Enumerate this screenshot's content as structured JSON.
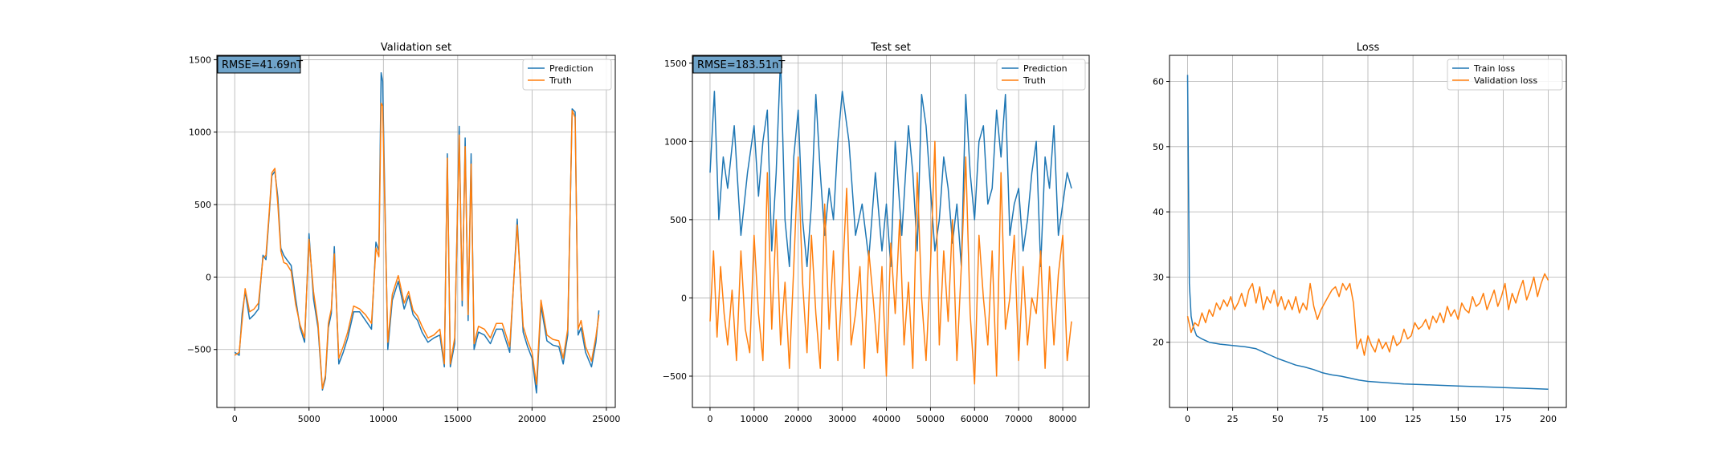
{
  "colors": {
    "blue": "#1f77b4",
    "orange": "#ff7f0e",
    "rmse_box": "#6fa3c9"
  },
  "chart_data": [
    {
      "type": "line",
      "title": "Validation set",
      "annotation": "RMSE=41.69nT",
      "xlabel": "",
      "ylabel": "",
      "xlim": [
        -1200,
        25600
      ],
      "ylim": [
        -900,
        1530
      ],
      "xticks": [
        0,
        5000,
        10000,
        15000,
        20000,
        25000
      ],
      "xtick_labels": [
        "0",
        "5000",
        "10000",
        "15000",
        "20000",
        "25000"
      ],
      "yticks": [
        -500,
        0,
        500,
        1000,
        1500
      ],
      "ytick_labels": [
        "−500",
        "0",
        "500",
        "1000",
        "1500"
      ],
      "grid": true,
      "legend_position": "top-right",
      "series": [
        {
          "name": "Prediction",
          "x": [
            0,
            300,
            500,
            700,
            1000,
            1300,
            1600,
            1900,
            2100,
            2300,
            2500,
            2700,
            2900,
            3100,
            3300,
            3500,
            3800,
            4100,
            4400,
            4700,
            5000,
            5300,
            5600,
            5900,
            6100,
            6300,
            6500,
            6700,
            7000,
            7300,
            7600,
            8000,
            8400,
            8800,
            9200,
            9500,
            9700,
            9850,
            9950,
            10100,
            10300,
            10600,
            11000,
            11400,
            11700,
            12000,
            12300,
            12600,
            13000,
            13400,
            13800,
            14100,
            14300,
            14500,
            14800,
            15100,
            15300,
            15500,
            15700,
            15900,
            16100,
            16400,
            16800,
            17200,
            17600,
            18000,
            18500,
            19000,
            19400,
            19700,
            20000,
            20300,
            20600,
            21000,
            21400,
            21800,
            22100,
            22400,
            22700,
            22900,
            23100,
            23300,
            23600,
            24000,
            24300,
            24500
          ],
          "y": [
            -520,
            -540,
            -250,
            -100,
            -290,
            -260,
            -220,
            150,
            120,
            400,
            700,
            730,
            550,
            200,
            150,
            120,
            80,
            -150,
            -350,
            -450,
            300,
            -150,
            -350,
            -780,
            -700,
            -350,
            -250,
            210,
            -600,
            -520,
            -420,
            -240,
            -240,
            -300,
            -360,
            240,
            180,
            1410,
            1350,
            550,
            -500,
            -160,
            -30,
            -220,
            -130,
            -260,
            -300,
            -380,
            -450,
            -420,
            -400,
            -620,
            850,
            -620,
            -460,
            1040,
            -200,
            960,
            -300,
            850,
            -500,
            -380,
            -400,
            -460,
            -360,
            -360,
            -520,
            400,
            -380,
            -480,
            -560,
            -800,
            -200,
            -440,
            -470,
            -480,
            -600,
            -400,
            1160,
            1140,
            -400,
            -350,
            -520,
            -620,
            -450,
            -230
          ]
        },
        {
          "name": "Truth",
          "x": [
            0,
            300,
            500,
            700,
            1000,
            1300,
            1600,
            1900,
            2100,
            2300,
            2500,
            2700,
            2900,
            3100,
            3300,
            3500,
            3800,
            4100,
            4400,
            4700,
            5000,
            5300,
            5600,
            5900,
            6100,
            6300,
            6500,
            6700,
            7000,
            7300,
            7600,
            8000,
            8400,
            8800,
            9200,
            9500,
            9700,
            9850,
            9950,
            10100,
            10300,
            10600,
            11000,
            11400,
            11700,
            12000,
            12300,
            12600,
            13000,
            13400,
            13800,
            14100,
            14300,
            14500,
            14800,
            15100,
            15300,
            15500,
            15700,
            15900,
            16100,
            16400,
            16800,
            17200,
            17600,
            18000,
            18500,
            19000,
            19400,
            19700,
            20000,
            20300,
            20600,
            21000,
            21400,
            21800,
            22100,
            22400,
            22700,
            22900,
            23100,
            23300,
            23600,
            24000,
            24300,
            24500
          ],
          "y": [
            -540,
            -520,
            -300,
            -80,
            -240,
            -220,
            -180,
            130,
            150,
            420,
            720,
            750,
            500,
            180,
            100,
            90,
            40,
            -190,
            -330,
            -420,
            260,
            -100,
            -320,
            -770,
            -680,
            -320,
            -220,
            160,
            -560,
            -480,
            -380,
            -200,
            -220,
            -260,
            -320,
            200,
            140,
            1200,
            1180,
            480,
            -450,
            -120,
            10,
            -180,
            -100,
            -230,
            -270,
            -340,
            -420,
            -400,
            -360,
            -600,
            820,
            -600,
            -420,
            980,
            -160,
            900,
            -260,
            780,
            -460,
            -340,
            -360,
            -420,
            -320,
            -320,
            -480,
            360,
            -340,
            -440,
            -520,
            -740,
            -160,
            -400,
            -430,
            -440,
            -560,
            -360,
            1150,
            1100,
            -360,
            -300,
            -480,
            -580,
            -410,
            -260
          ]
        }
      ]
    },
    {
      "type": "line",
      "title": "Test set",
      "annotation": "RMSE=183.51nT",
      "xlabel": "",
      "ylabel": "",
      "xlim": [
        -4000,
        86000
      ],
      "ylim": [
        -700,
        1550
      ],
      "xticks": [
        0,
        10000,
        20000,
        30000,
        40000,
        50000,
        60000,
        70000,
        80000
      ],
      "xtick_labels": [
        "0",
        "10000",
        "20000",
        "30000",
        "40000",
        "50000",
        "60000",
        "70000",
        "80000"
      ],
      "yticks": [
        -500,
        0,
        500,
        1000,
        1500
      ],
      "ytick_labels": [
        "−500",
        "0",
        "500",
        "1000",
        "1500"
      ],
      "grid": true,
      "legend_position": "top-right",
      "series": [
        {
          "name": "Prediction",
          "x": [
            0,
            1000,
            2000,
            3000,
            4000,
            5500,
            7000,
            8500,
            10000,
            11000,
            12000,
            13000,
            14000,
            15000,
            16000,
            17000,
            18000,
            19000,
            20000,
            21000,
            22000,
            23000,
            24000,
            25000,
            26000,
            27000,
            28000,
            29000,
            30000,
            31500,
            33000,
            34500,
            36000,
            37500,
            39000,
            40000,
            41000,
            42000,
            43500,
            45000,
            46000,
            47000,
            48000,
            49000,
            50000,
            51000,
            52000,
            53000,
            54000,
            55000,
            56000,
            57000,
            58000,
            59000,
            60000,
            61000,
            62000,
            63000,
            64000,
            65000,
            66000,
            67000,
            68000,
            69000,
            70000,
            71000,
            72000,
            73000,
            74000,
            75000,
            76000,
            77000,
            78000,
            79000,
            80000,
            81000,
            82000
          ],
          "y": [
            800,
            1320,
            500,
            900,
            700,
            1100,
            400,
            800,
            1100,
            650,
            1000,
            1200,
            300,
            800,
            1540,
            500,
            200,
            900,
            1200,
            500,
            200,
            600,
            1300,
            800,
            400,
            700,
            500,
            1000,
            1320,
            1000,
            400,
            600,
            250,
            800,
            300,
            600,
            200,
            1000,
            400,
            1100,
            800,
            300,
            1300,
            1100,
            700,
            300,
            500,
            900,
            700,
            350,
            600,
            200,
            1300,
            800,
            500,
            1000,
            1100,
            600,
            700,
            1200,
            900,
            1300,
            400,
            600,
            700,
            300,
            500,
            800,
            1000,
            200,
            900,
            700,
            1100,
            400,
            600,
            800,
            700
          ]
        },
        {
          "name": "Truth",
          "x": [
            0,
            800,
            1600,
            2400,
            3200,
            4000,
            5000,
            6000,
            7000,
            8000,
            9000,
            10000,
            11000,
            12000,
            13000,
            14000,
            15000,
            16000,
            17000,
            18000,
            19000,
            20000,
            21000,
            22000,
            23000,
            24000,
            25000,
            26000,
            27000,
            28000,
            29000,
            30000,
            31000,
            32000,
            33000,
            34000,
            35000,
            36000,
            37000,
            38000,
            39000,
            40000,
            41000,
            42000,
            43000,
            44000,
            45000,
            46000,
            47000,
            48000,
            49000,
            50000,
            51000,
            52000,
            53000,
            54000,
            55000,
            56000,
            57000,
            58000,
            59000,
            60000,
            61000,
            62000,
            63000,
            64000,
            65000,
            66000,
            67000,
            68000,
            69000,
            70000,
            71000,
            72000,
            73000,
            74000,
            75000,
            76000,
            77000,
            78000,
            79000,
            80000,
            81000,
            82000
          ],
          "y": [
            -150,
            300,
            -250,
            200,
            -100,
            -300,
            50,
            -400,
            300,
            -200,
            -350,
            400,
            -100,
            -400,
            800,
            -200,
            500,
            -300,
            100,
            -450,
            200,
            900,
            100,
            -350,
            400,
            -100,
            -450,
            600,
            -200,
            300,
            -400,
            100,
            700,
            -300,
            -100,
            200,
            -450,
            300,
            0,
            -350,
            200,
            -500,
            350,
            -100,
            500,
            -300,
            100,
            -450,
            800,
            0,
            -400,
            200,
            1000,
            -300,
            300,
            -150,
            500,
            -400,
            200,
            900,
            -100,
            -550,
            400,
            0,
            -300,
            300,
            -500,
            800,
            -200,
            0,
            400,
            -400,
            200,
            -300,
            0,
            -100,
            300,
            -450,
            200,
            -300,
            150,
            400,
            -400,
            -150
          ]
        }
      ]
    },
    {
      "type": "line",
      "title": "Loss",
      "annotation": "",
      "xlabel": "",
      "ylabel": "",
      "xlim": [
        -10,
        210
      ],
      "ylim": [
        10,
        64
      ],
      "xticks": [
        0,
        25,
        50,
        75,
        100,
        125,
        150,
        175,
        200
      ],
      "xtick_labels": [
        "0",
        "25",
        "50",
        "75",
        "100",
        "125",
        "150",
        "175",
        "200"
      ],
      "yticks": [
        20,
        30,
        40,
        50,
        60
      ],
      "ytick_labels": [
        "20",
        "30",
        "40",
        "50",
        "60"
      ],
      "grid": true,
      "legend_position": "top-right",
      "series": [
        {
          "name": "Train loss",
          "x": [
            0,
            1,
            2,
            3,
            5,
            8,
            12,
            18,
            25,
            32,
            38,
            42,
            46,
            50,
            55,
            60,
            65,
            70,
            75,
            80,
            85,
            90,
            95,
            100,
            110,
            120,
            130,
            140,
            150,
            160,
            170,
            180,
            190,
            200
          ],
          "y": [
            61,
            29,
            24,
            22.5,
            21,
            20.5,
            20,
            19.7,
            19.5,
            19.3,
            19,
            18.5,
            18,
            17.5,
            17,
            16.5,
            16.2,
            15.8,
            15.3,
            15,
            14.8,
            14.5,
            14.2,
            14,
            13.8,
            13.6,
            13.5,
            13.4,
            13.3,
            13.2,
            13.1,
            13.0,
            12.9,
            12.8
          ]
        },
        {
          "name": "Validation loss",
          "x": [
            0,
            2,
            4,
            6,
            8,
            10,
            12,
            14,
            16,
            18,
            20,
            22,
            24,
            26,
            28,
            30,
            32,
            34,
            36,
            38,
            40,
            42,
            44,
            46,
            48,
            50,
            52,
            54,
            56,
            58,
            60,
            62,
            64,
            66,
            68,
            70,
            72,
            74,
            76,
            78,
            80,
            82,
            84,
            86,
            88,
            90,
            92,
            94,
            96,
            98,
            100,
            102,
            104,
            106,
            108,
            110,
            112,
            114,
            116,
            118,
            120,
            122,
            124,
            126,
            128,
            130,
            132,
            134,
            136,
            138,
            140,
            142,
            144,
            146,
            148,
            150,
            152,
            154,
            156,
            158,
            160,
            162,
            164,
            166,
            168,
            170,
            172,
            174,
            176,
            178,
            180,
            182,
            184,
            186,
            188,
            190,
            192,
            194,
            196,
            198,
            200
          ],
          "y": [
            24,
            21.5,
            23,
            22.5,
            24.5,
            23,
            25,
            24,
            26,
            25,
            26.5,
            25.5,
            27,
            25,
            26,
            27.5,
            25.5,
            28,
            29,
            26,
            28.5,
            25,
            27,
            26,
            28,
            25.5,
            27,
            25,
            26.5,
            25,
            27,
            24.5,
            26,
            25,
            29,
            25.5,
            23.5,
            25,
            26,
            27,
            28,
            28.5,
            27,
            29,
            28,
            29,
            26,
            19,
            20.5,
            18,
            21,
            19.5,
            18.5,
            20.5,
            19,
            20,
            18.5,
            21,
            19.5,
            20,
            22,
            20.5,
            21,
            23,
            22,
            22.5,
            23.5,
            22,
            24,
            23,
            24.5,
            23,
            25.5,
            24,
            25,
            23.5,
            26,
            25,
            24.5,
            27,
            25.5,
            26,
            27.5,
            25,
            26.5,
            28,
            25.5,
            27,
            29,
            25,
            27.5,
            26,
            28,
            29.5,
            26.5,
            28,
            30,
            27,
            29,
            30.5,
            29.5
          ]
        }
      ]
    }
  ]
}
